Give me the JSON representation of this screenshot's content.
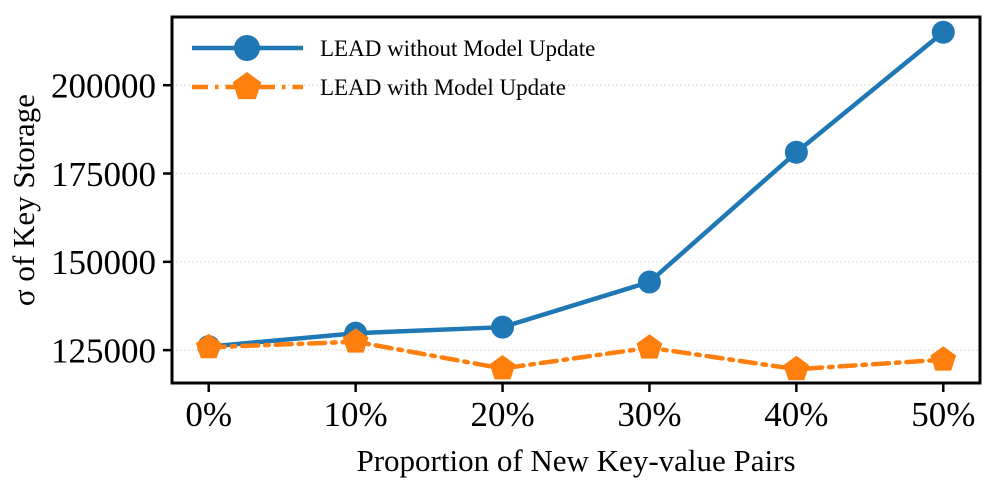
{
  "figure": {
    "background": "#ffffff",
    "spine_color": "#000000",
    "grid_color": "#d8d8d8"
  },
  "chart_data": {
    "type": "line",
    "title": "",
    "xlabel": "Proportion of New Key-value Pairs",
    "ylabel": "σ of Key Storage",
    "categories": [
      "0%",
      "10%",
      "20%",
      "30%",
      "40%",
      "50%"
    ],
    "series": [
      {
        "name": "LEAD without Model Update",
        "values": [
          126000,
          129800,
          131500,
          144300,
          181000,
          215000
        ],
        "color": "#1f77b4",
        "line_style": "solid",
        "marker": "circle"
      },
      {
        "name": "LEAD with Model Update",
        "values": [
          125800,
          127400,
          119800,
          125700,
          119600,
          122300
        ],
        "color": "#ff7f0e",
        "line_style": "dash-dot",
        "marker": "pentagon"
      }
    ],
    "yticks": [
      125000,
      150000,
      175000,
      200000
    ],
    "ylim": [
      115700,
      219300
    ],
    "grid": "horizontal",
    "legend_position": "upper-left"
  }
}
